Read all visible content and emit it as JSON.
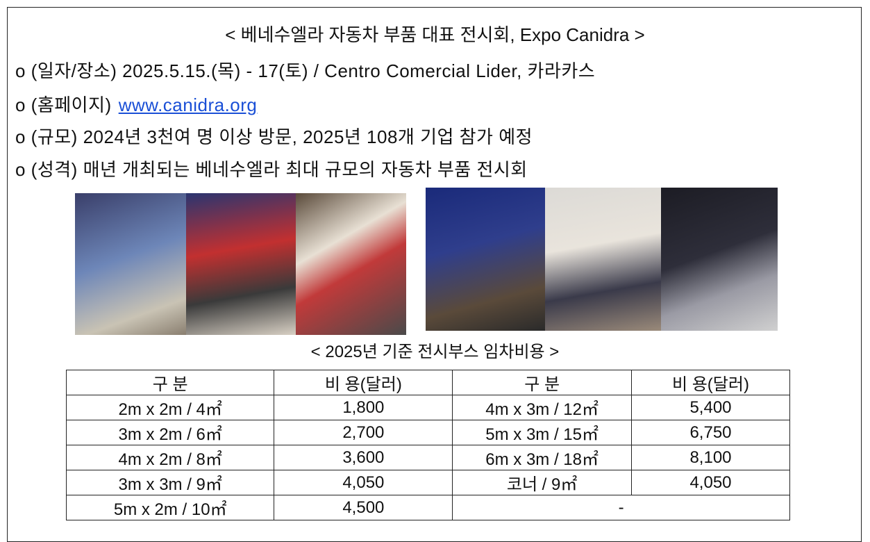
{
  "header": {
    "title": "< 베네수엘라 자동차 부품 대표 전시회, Expo Canidra >"
  },
  "bullets": [
    {
      "text": "o (일자/장소) 2025.5.15.(목) - 17(토) / Centro Comercial Lider, 카라카스"
    },
    {
      "text": "o (홈페이지)",
      "link": "www.canidra.org"
    },
    {
      "text": "o (규모) 2024년 3천여 명 이상 방문, 2025년 108개 기업 참가 예정"
    },
    {
      "text": "o (성격) 매년 개최되는 베네수엘라 최대 규모의 자동차 부품 전시회"
    }
  ],
  "table": {
    "caption": "< 2025년 기준 전시부스 임차비용 >",
    "header": [
      "구 분",
      "비 용(달러)",
      "구 분",
      "비 용(달러)"
    ],
    "rows": [
      [
        "2m x 2m / 4㎡",
        "1,800",
        "4m x 3m / 12㎡",
        "5,400"
      ],
      [
        "3m x 2m / 6㎡",
        "2,700",
        "5m x 3m / 15㎡",
        "6,750"
      ],
      [
        "4m x 2m / 8㎡",
        "3,600",
        "6m x 3m / 18㎡",
        "8,100"
      ],
      [
        "3m x 3m / 9㎡",
        "4,050",
        "코너 / 9㎡",
        "4,050"
      ],
      [
        "5m x 2m / 10㎡",
        "4,500",
        "-"
      ]
    ]
  }
}
